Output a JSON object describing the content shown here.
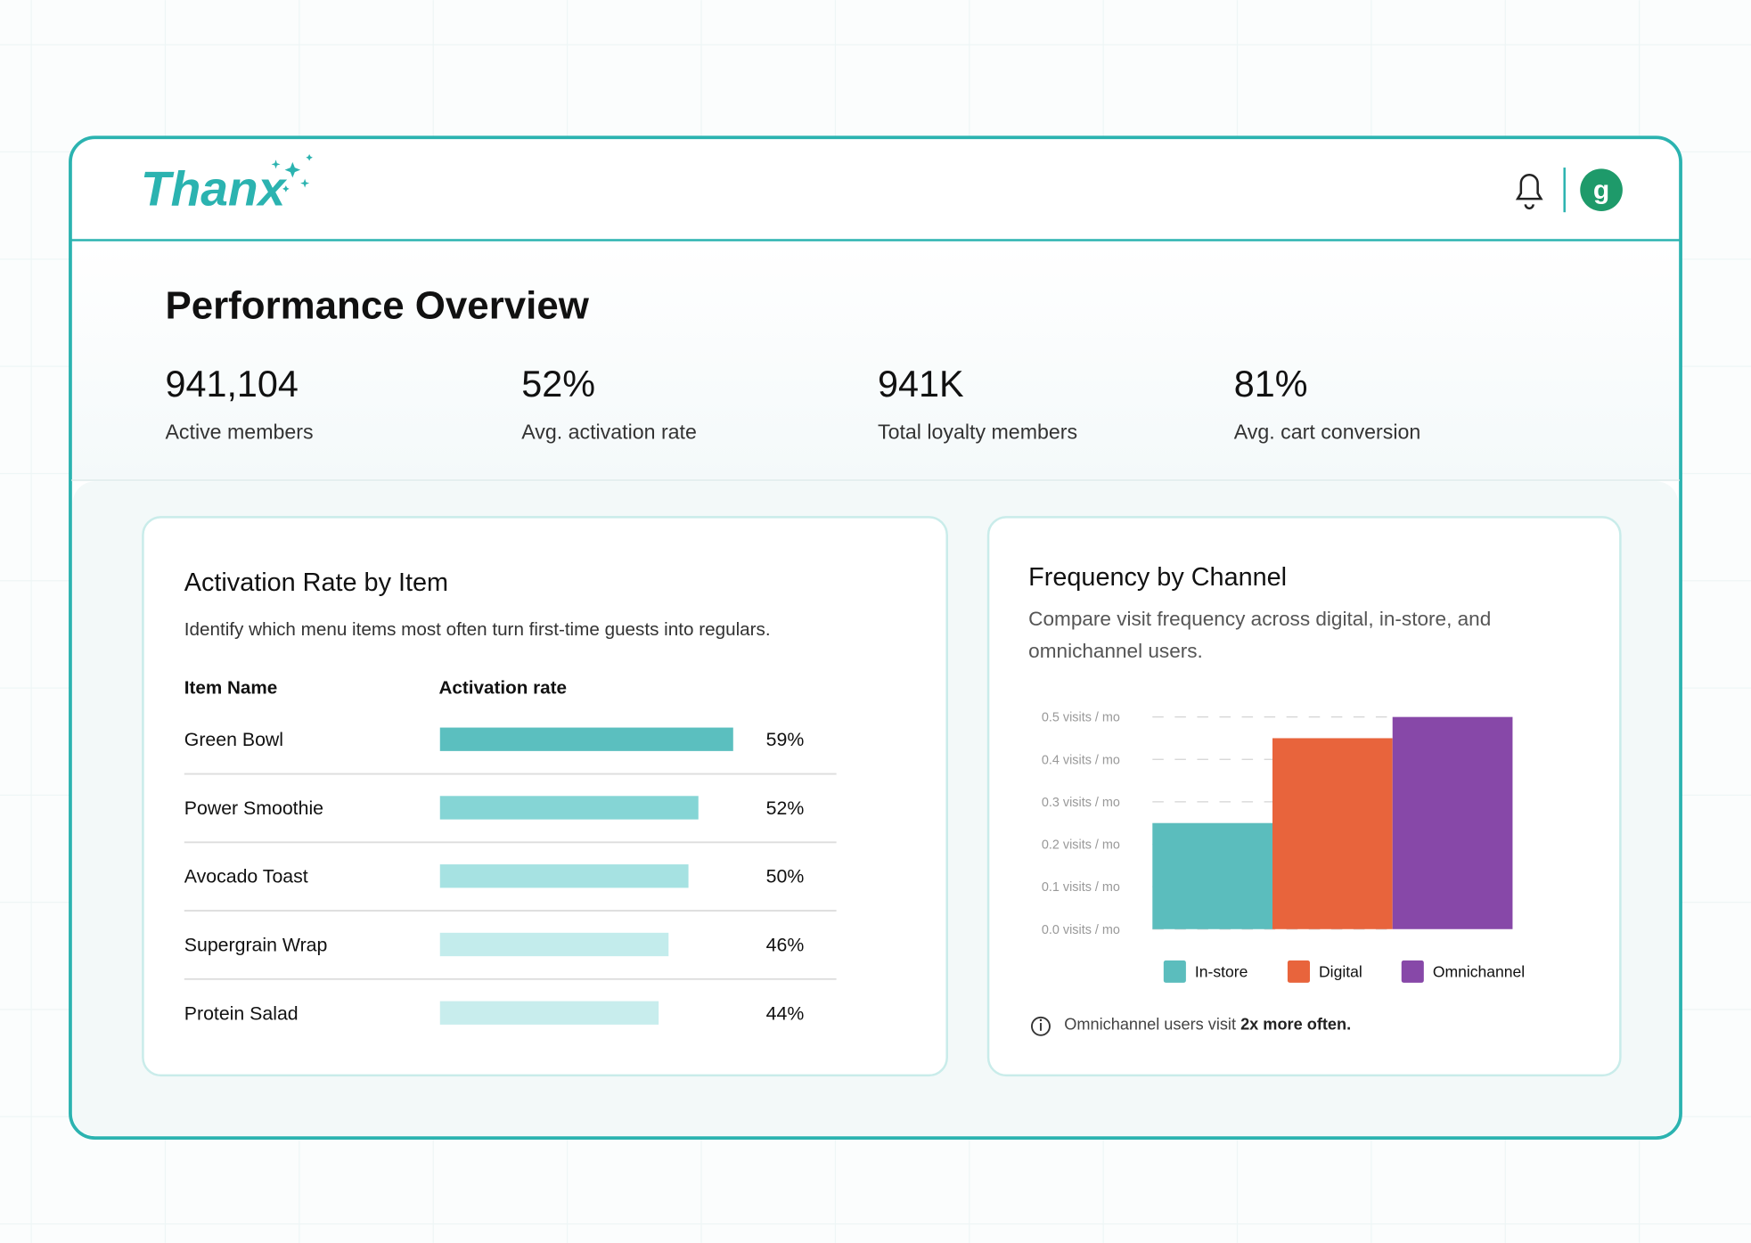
{
  "header": {
    "logo": "Thanx",
    "avatar": "g"
  },
  "overview": {
    "title": "Performance Overview",
    "kpis": [
      {
        "value": "941,104",
        "label": "Active members"
      },
      {
        "value": "52%",
        "label": "Avg. activation rate"
      },
      {
        "value": "941K",
        "label": "Total loyalty members"
      },
      {
        "value": "81%",
        "label": "Avg. cart conversion"
      }
    ]
  },
  "activation": {
    "title": "Activation Rate by Item",
    "description": "Identify which menu items most often turn first-time guests into regulars.",
    "columns": [
      "Item Name",
      "Activation rate"
    ],
    "rows": [
      {
        "name": "Green Bowl",
        "rate": 59,
        "rate_label": "59%",
        "color": "#5bbfbf"
      },
      {
        "name": "Power Smoothie",
        "rate": 52,
        "rate_label": "52%",
        "color": "#85d5d5"
      },
      {
        "name": "Avocado Toast",
        "rate": 50,
        "rate_label": "50%",
        "color": "#a6e2e2"
      },
      {
        "name": "Supergrain Wrap",
        "rate": 46,
        "rate_label": "46%",
        "color": "#c3ecec"
      },
      {
        "name": "Protein Salad",
        "rate": 44,
        "rate_label": "44%",
        "color": "#c8eded"
      }
    ]
  },
  "chart_data": {
    "type": "bar",
    "title": "Frequency by Channel",
    "subtitle": "Compare visit frequency across digital, in-store, and omnichannel users.",
    "series": [
      {
        "name": "In-store",
        "color": "#5bbdbd",
        "values": [
          0.25
        ]
      },
      {
        "name": "Digital",
        "color": "#e8643c",
        "values": [
          0.45
        ]
      },
      {
        "name": "Omnichannel",
        "color": "#8748a8",
        "values": [
          0.5
        ]
      }
    ],
    "ylim": [
      0,
      0.5
    ],
    "yticks": [
      {
        "value": 0,
        "label": "0.0 visits / mo"
      },
      {
        "value": 0.1,
        "label": "0.1 visits / mo"
      },
      {
        "value": 0.2,
        "label": "0.2 visits / mo"
      },
      {
        "value": 0.3,
        "label": "0.3 visits / mo"
      },
      {
        "value": 0.4,
        "label": "0.4 visits / mo"
      },
      {
        "value": 0.5,
        "label": "0.5 visits / mo"
      }
    ],
    "grid": true,
    "note": {
      "text": "Omnichannel users visit ",
      "emphasis": "2x more often."
    }
  }
}
